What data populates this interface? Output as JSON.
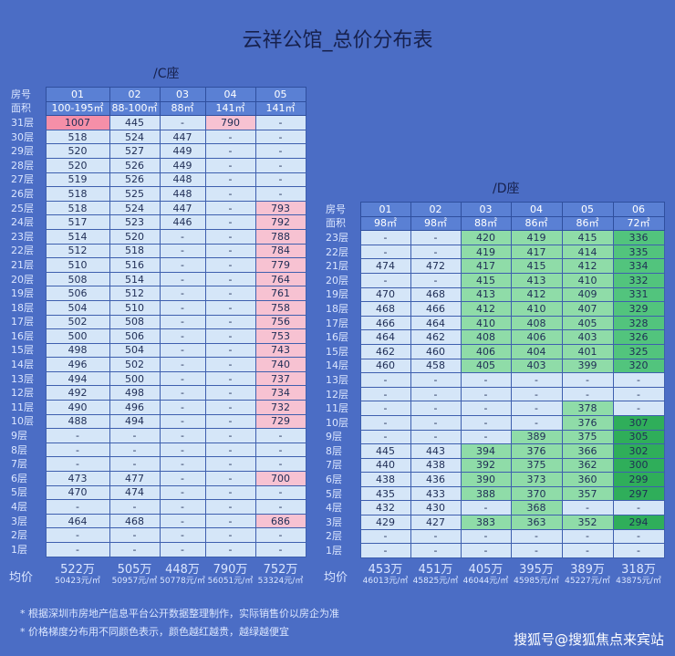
{
  "title": "云祥公馆_总价分布表",
  "c": {
    "label": "/C座",
    "row_header": "房号",
    "area_header": "面积",
    "avg_label": "均价",
    "cols": [
      "01",
      "02",
      "03",
      "04",
      "05"
    ],
    "areas": [
      "100-195㎡",
      "88-100㎡",
      "88㎡",
      "141㎡",
      "141㎡"
    ],
    "rows": [
      [
        "31层",
        "1007",
        "445",
        "-",
        "790",
        "-"
      ],
      [
        "30层",
        "518",
        "524",
        "447",
        "-",
        "-"
      ],
      [
        "29层",
        "520",
        "527",
        "449",
        "-",
        "-"
      ],
      [
        "28层",
        "520",
        "526",
        "449",
        "-",
        "-"
      ],
      [
        "27层",
        "519",
        "526",
        "448",
        "-",
        "-"
      ],
      [
        "26层",
        "518",
        "525",
        "448",
        "-",
        "-"
      ],
      [
        "25层",
        "518",
        "524",
        "447",
        "-",
        "793"
      ],
      [
        "24层",
        "517",
        "523",
        "446",
        "-",
        "792"
      ],
      [
        "23层",
        "514",
        "520",
        "-",
        "-",
        "788"
      ],
      [
        "22层",
        "512",
        "518",
        "-",
        "-",
        "784"
      ],
      [
        "21层",
        "510",
        "516",
        "-",
        "-",
        "779"
      ],
      [
        "20层",
        "508",
        "514",
        "-",
        "-",
        "764"
      ],
      [
        "19层",
        "506",
        "512",
        "-",
        "-",
        "761"
      ],
      [
        "18层",
        "504",
        "510",
        "-",
        "-",
        "758"
      ],
      [
        "17层",
        "502",
        "508",
        "-",
        "-",
        "756"
      ],
      [
        "16层",
        "500",
        "506",
        "-",
        "-",
        "753"
      ],
      [
        "15层",
        "498",
        "504",
        "-",
        "-",
        "743"
      ],
      [
        "14层",
        "496",
        "502",
        "-",
        "-",
        "740"
      ],
      [
        "13层",
        "494",
        "500",
        "-",
        "-",
        "737"
      ],
      [
        "12层",
        "492",
        "498",
        "-",
        "-",
        "734"
      ],
      [
        "11层",
        "490",
        "496",
        "-",
        "-",
        "732"
      ],
      [
        "10层",
        "488",
        "494",
        "-",
        "-",
        "729"
      ],
      [
        "9层",
        "-",
        "-",
        "-",
        "-",
        "-"
      ],
      [
        "8层",
        "-",
        "-",
        "-",
        "-",
        "-"
      ],
      [
        "7层",
        "-",
        "-",
        "-",
        "-",
        "-"
      ],
      [
        "6层",
        "473",
        "477",
        "-",
        "-",
        "700"
      ],
      [
        "5层",
        "470",
        "474",
        "-",
        "-",
        "-"
      ],
      [
        "4层",
        "-",
        "-",
        "-",
        "-",
        "-"
      ],
      [
        "3层",
        "464",
        "468",
        "-",
        "-",
        "686"
      ],
      [
        "2层",
        "-",
        "-",
        "-",
        "-",
        "-"
      ],
      [
        "1层",
        "-",
        "-",
        "-",
        "-",
        "-"
      ]
    ],
    "avg": [
      [
        "522万",
        "50423元/㎡"
      ],
      [
        "505万",
        "50957元/㎡"
      ],
      [
        "448万",
        "50778元/㎡"
      ],
      [
        "790万",
        "56051元/㎡"
      ],
      [
        "752万",
        "53324元/㎡"
      ]
    ]
  },
  "d": {
    "label": "/D座",
    "row_header": "房号",
    "area_header": "面积",
    "avg_label": "均价",
    "cols": [
      "01",
      "02",
      "03",
      "04",
      "05",
      "06"
    ],
    "areas": [
      "98㎡",
      "98㎡",
      "88㎡",
      "86㎡",
      "86㎡",
      "72㎡"
    ],
    "rows": [
      [
        "23层",
        "-",
        "-",
        "420",
        "419",
        "415",
        "336"
      ],
      [
        "22层",
        "-",
        "-",
        "419",
        "417",
        "414",
        "335"
      ],
      [
        "21层",
        "474",
        "472",
        "417",
        "415",
        "412",
        "334"
      ],
      [
        "20层",
        "-",
        "-",
        "415",
        "413",
        "410",
        "332"
      ],
      [
        "19层",
        "470",
        "468",
        "413",
        "412",
        "409",
        "331"
      ],
      [
        "18层",
        "468",
        "466",
        "412",
        "410",
        "407",
        "329"
      ],
      [
        "17层",
        "466",
        "464",
        "410",
        "408",
        "405",
        "328"
      ],
      [
        "16层",
        "464",
        "462",
        "408",
        "406",
        "403",
        "326"
      ],
      [
        "15层",
        "462",
        "460",
        "406",
        "404",
        "401",
        "325"
      ],
      [
        "14层",
        "460",
        "458",
        "405",
        "403",
        "399",
        "320"
      ],
      [
        "13层",
        "-",
        "-",
        "-",
        "-",
        "-",
        "-"
      ],
      [
        "12层",
        "-",
        "-",
        "-",
        "-",
        "-",
        "-"
      ],
      [
        "11层",
        "-",
        "-",
        "-",
        "-",
        "378",
        "-"
      ],
      [
        "10层",
        "-",
        "-",
        "-",
        "-",
        "376",
        "307"
      ],
      [
        "9层",
        "-",
        "-",
        "-",
        "389",
        "375",
        "305"
      ],
      [
        "8层",
        "445",
        "443",
        "394",
        "376",
        "366",
        "302"
      ],
      [
        "7层",
        "440",
        "438",
        "392",
        "375",
        "362",
        "300"
      ],
      [
        "6层",
        "438",
        "436",
        "390",
        "373",
        "360",
        "299"
      ],
      [
        "5层",
        "435",
        "433",
        "388",
        "370",
        "357",
        "297"
      ],
      [
        "4层",
        "432",
        "430",
        "-",
        "368",
        "-",
        "-"
      ],
      [
        "3层",
        "429",
        "427",
        "383",
        "363",
        "352",
        "294"
      ],
      [
        "2层",
        "-",
        "-",
        "-",
        "-",
        "-",
        "-"
      ],
      [
        "1层",
        "-",
        "-",
        "-",
        "-",
        "-",
        "-"
      ]
    ],
    "avg": [
      [
        "453万",
        "46013元/㎡"
      ],
      [
        "451万",
        "45825元/㎡"
      ],
      [
        "405万",
        "46044元/㎡"
      ],
      [
        "395万",
        "45985元/㎡"
      ],
      [
        "389万",
        "45227元/㎡"
      ],
      [
        "318万",
        "43875元/㎡"
      ]
    ]
  },
  "notes": [
    "* 根据深圳市房地产信息平台公开数据整理制作，实际销售价以房企为准",
    "* 价格梯度分布用不同颜色表示，颜色越红越贵，越绿越便宜"
  ],
  "watermark": "搜狐号@搜狐焦点来宾站",
  "colors": {
    "background": "#4b6dc5",
    "expensive": "#f58fa8",
    "cheap": "#2fae5a"
  }
}
